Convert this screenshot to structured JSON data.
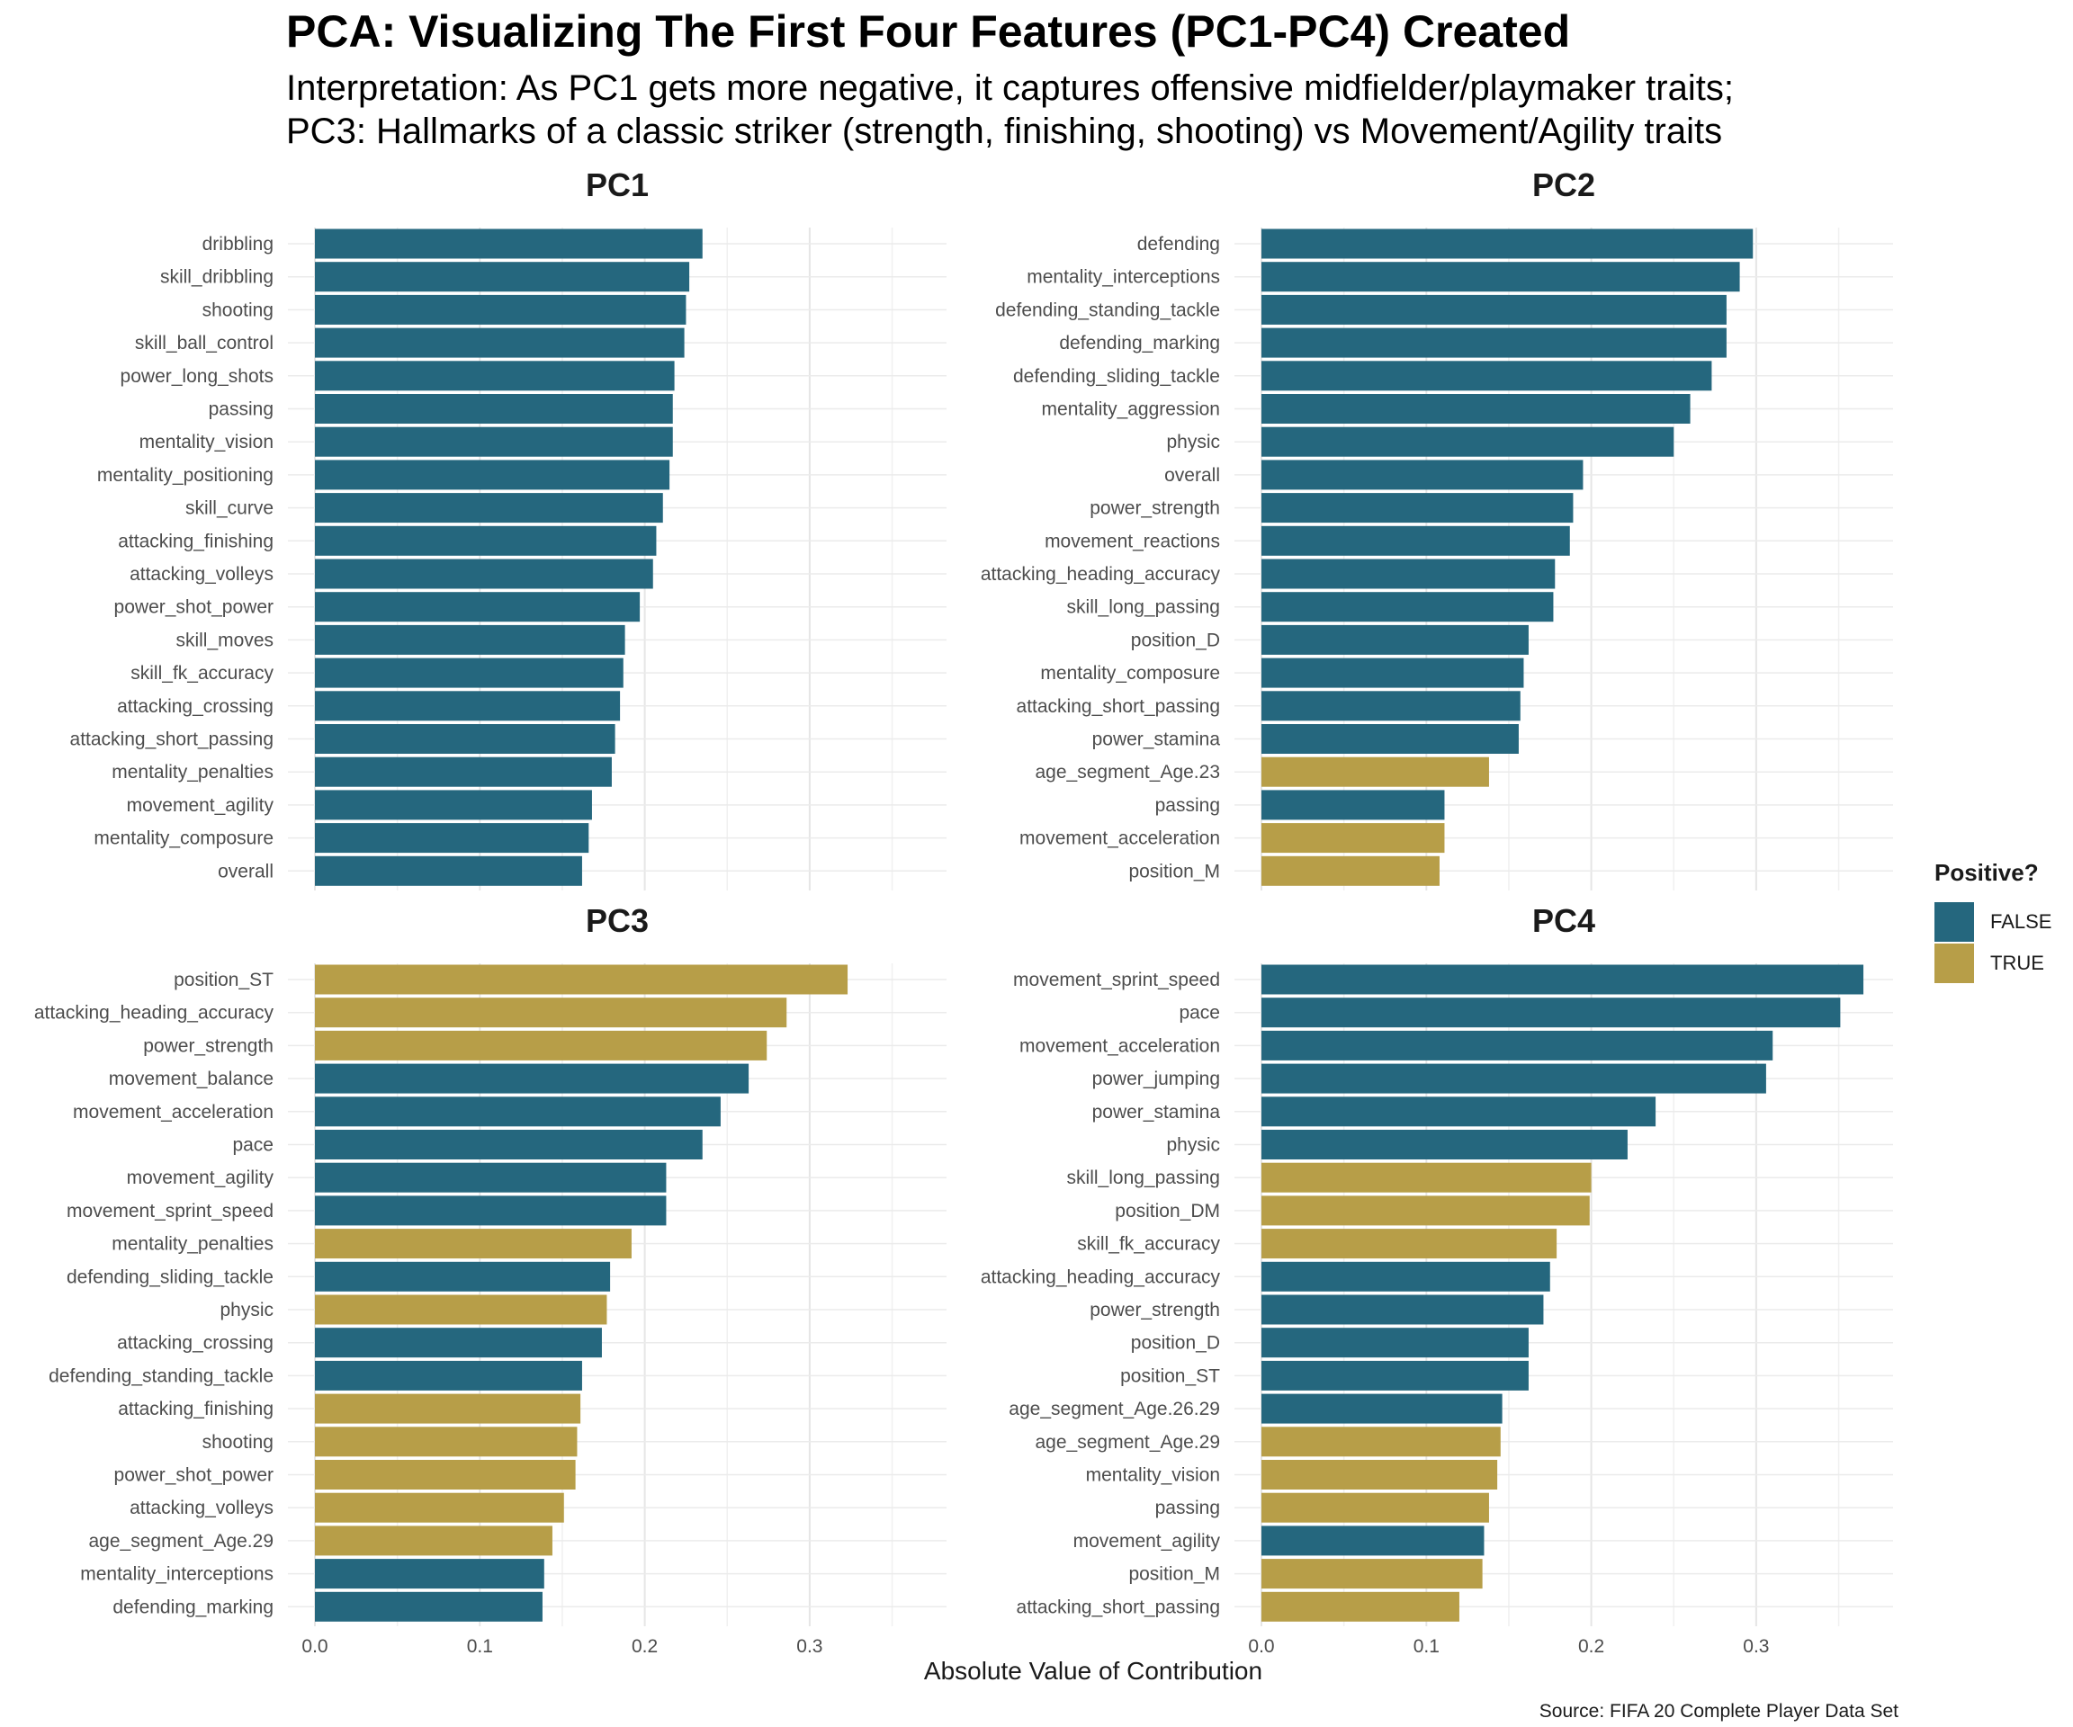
{
  "title": "PCA: Visualizing The First Four Features (PC1-PC4) Created",
  "subtitle_line1": "Interpretation: As PC1 gets more negative, it captures offensive midfielder/playmaker traits;",
  "subtitle_line2": "PC3: Hallmarks of a classic striker (strength, finishing, shooting) vs Movement/Agility traits",
  "xlabel": "Absolute Value of Contribution",
  "source": "Source: FIFA 20 Complete Player Data Set",
  "legend": {
    "title": "Positive?",
    "items": [
      {
        "label": "FALSE",
        "color": "#25677e"
      },
      {
        "label": "TRUE",
        "color": "#b79e48"
      }
    ]
  },
  "chart_data": {
    "type": "bar",
    "orientation": "horizontal",
    "xlim": [
      0,
      0.38
    ],
    "x_ticks": [
      "0.0",
      "0.1",
      "0.2",
      "0.3"
    ],
    "grid": true,
    "legend_position": "right",
    "panels": [
      {
        "name": "PC1",
        "categories": [
          "dribbling",
          "skill_dribbling",
          "shooting",
          "skill_ball_control",
          "power_long_shots",
          "passing",
          "mentality_vision",
          "mentality_positioning",
          "skill_curve",
          "attacking_finishing",
          "attacking_volleys",
          "power_shot_power",
          "skill_moves",
          "skill_fk_accuracy",
          "attacking_crossing",
          "attacking_short_passing",
          "mentality_penalties",
          "movement_agility",
          "mentality_composure",
          "overall"
        ],
        "values": [
          0.235,
          0.227,
          0.225,
          0.224,
          0.218,
          0.217,
          0.217,
          0.215,
          0.211,
          0.207,
          0.205,
          0.197,
          0.188,
          0.187,
          0.185,
          0.182,
          0.18,
          0.168,
          0.166,
          0.162
        ],
        "positive": [
          false,
          false,
          false,
          false,
          false,
          false,
          false,
          false,
          false,
          false,
          false,
          false,
          false,
          false,
          false,
          false,
          false,
          false,
          false,
          false
        ]
      },
      {
        "name": "PC2",
        "categories": [
          "defending",
          "mentality_interceptions",
          "defending_standing_tackle",
          "defending_marking",
          "defending_sliding_tackle",
          "mentality_aggression",
          "physic",
          "overall",
          "power_strength",
          "movement_reactions",
          "attacking_heading_accuracy",
          "skill_long_passing",
          "position_D",
          "mentality_composure",
          "attacking_short_passing",
          "power_stamina",
          "age_segment_Age.23",
          "passing",
          "movement_acceleration",
          "position_M"
        ],
        "values": [
          0.298,
          0.29,
          0.282,
          0.282,
          0.273,
          0.26,
          0.25,
          0.195,
          0.189,
          0.187,
          0.178,
          0.177,
          0.162,
          0.159,
          0.157,
          0.156,
          0.138,
          0.111,
          0.111,
          0.108
        ],
        "positive": [
          false,
          false,
          false,
          false,
          false,
          false,
          false,
          false,
          false,
          false,
          false,
          false,
          false,
          false,
          false,
          false,
          true,
          false,
          true,
          true
        ]
      },
      {
        "name": "PC3",
        "categories": [
          "position_ST",
          "attacking_heading_accuracy",
          "power_strength",
          "movement_balance",
          "movement_acceleration",
          "pace",
          "movement_agility",
          "movement_sprint_speed",
          "mentality_penalties",
          "defending_sliding_tackle",
          "physic",
          "attacking_crossing",
          "defending_standing_tackle",
          "attacking_finishing",
          "shooting",
          "power_shot_power",
          "attacking_volleys",
          "age_segment_Age.29",
          "mentality_interceptions",
          "defending_marking"
        ],
        "values": [
          0.323,
          0.286,
          0.274,
          0.263,
          0.246,
          0.235,
          0.213,
          0.213,
          0.192,
          0.179,
          0.177,
          0.174,
          0.162,
          0.161,
          0.159,
          0.158,
          0.151,
          0.144,
          0.139,
          0.138
        ],
        "positive": [
          true,
          true,
          true,
          false,
          false,
          false,
          false,
          false,
          true,
          false,
          true,
          false,
          false,
          true,
          true,
          true,
          true,
          true,
          false,
          false
        ]
      },
      {
        "name": "PC4",
        "categories": [
          "movement_sprint_speed",
          "pace",
          "movement_acceleration",
          "power_jumping",
          "power_stamina",
          "physic",
          "skill_long_passing",
          "position_DM",
          "skill_fk_accuracy",
          "attacking_heading_accuracy",
          "power_strength",
          "position_D",
          "position_ST",
          "age_segment_Age.26.29",
          "age_segment_Age.29",
          "mentality_vision",
          "passing",
          "movement_agility",
          "position_M",
          "attacking_short_passing"
        ],
        "values": [
          0.365,
          0.351,
          0.31,
          0.306,
          0.239,
          0.222,
          0.2,
          0.199,
          0.179,
          0.175,
          0.171,
          0.162,
          0.162,
          0.146,
          0.145,
          0.143,
          0.138,
          0.135,
          0.134,
          0.12
        ],
        "positive": [
          false,
          false,
          false,
          false,
          false,
          false,
          true,
          true,
          true,
          false,
          false,
          false,
          false,
          false,
          true,
          true,
          true,
          false,
          true,
          true
        ]
      }
    ]
  }
}
